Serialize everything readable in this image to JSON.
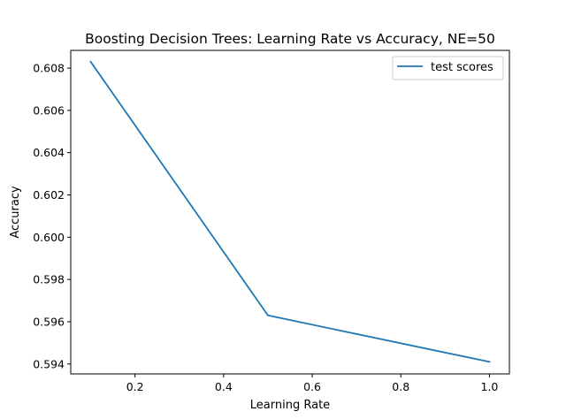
{
  "chart_data": {
    "type": "line",
    "title": "Boosting Decision Trees: Learning Rate vs Accuracy, NE=50",
    "xlabel": "Learning Rate",
    "ylabel": "Accuracy",
    "xlim": [
      0.055,
      1.045
    ],
    "ylim": [
      0.59353,
      0.60884
    ],
    "xticks": [
      0.2,
      0.4,
      0.6,
      0.8,
      1.0
    ],
    "xtick_labels": [
      "0.2",
      "0.4",
      "0.6",
      "0.8",
      "1.0"
    ],
    "yticks": [
      0.594,
      0.596,
      0.598,
      0.6,
      0.602,
      0.604,
      0.606,
      0.608
    ],
    "ytick_labels": [
      "0.594",
      "0.596",
      "0.598",
      "0.600",
      "0.602",
      "0.604",
      "0.606",
      "0.608"
    ],
    "grid": false,
    "legend_position": "top-right",
    "series": [
      {
        "name": "test scores",
        "color": "#1f77b4",
        "x": [
          0.1,
          0.5,
          1.0
        ],
        "y": [
          0.6083,
          0.5963,
          0.5941
        ]
      }
    ]
  }
}
